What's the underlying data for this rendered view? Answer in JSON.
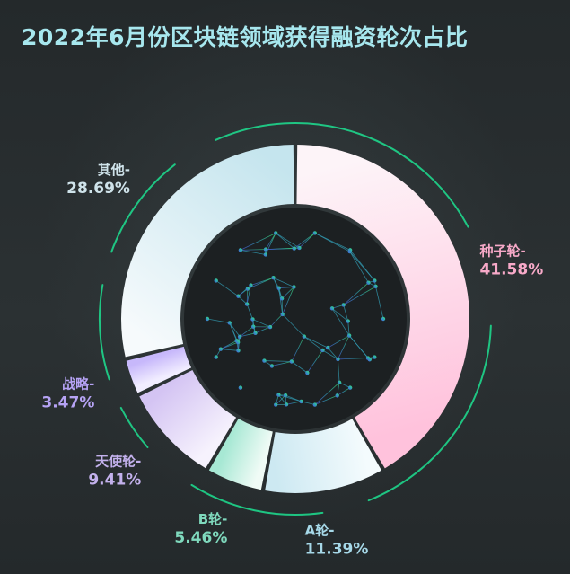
{
  "title": "2022年6月份区块链领域获得融资轮次占比",
  "chart_data": {
    "type": "pie",
    "variant": "donut",
    "title": "2022年6月份区块链领域获得融资轮次占比",
    "legend": "none",
    "order": "clockwise from top",
    "slices": [
      {
        "name": "种子轮",
        "label": "种子轮-",
        "value": 41.58,
        "value_label": "41.58%",
        "color_start": "#ffc2dc",
        "color_end": "#fdf4f8",
        "text_color": "#f7a9c8"
      },
      {
        "name": "A轮",
        "label": "A轮-",
        "value": 11.39,
        "value_label": "11.39%",
        "color_start": "#cde9f2",
        "color_end": "#f4fbfd",
        "text_color": "#a6d8e8"
      },
      {
        "name": "B轮",
        "label": "B轮-",
        "value": 5.46,
        "value_label": "5.46%",
        "color_start": "#a7e8d4",
        "color_end": "#f0fbf6",
        "text_color": "#7fd9bd"
      },
      {
        "name": "天使轮",
        "label": "天使轮-",
        "value": 9.41,
        "value_label": "9.41%",
        "color_start": "#d4c4f3",
        "color_end": "#f6f2fd",
        "text_color": "#c3b1ec"
      },
      {
        "name": "战略",
        "label": "战略-",
        "value": 3.47,
        "value_label": "3.47%",
        "color_start": "#c7b8fb",
        "color_end": "#f1edff",
        "text_color": "#b6a3f5"
      },
      {
        "name": "其他",
        "label": "其他-",
        "value": 28.69,
        "value_label": "28.69%",
        "color_start": "#c5e5ee",
        "color_end": "#f6fafc",
        "text_color": "#cfe3ea"
      }
    ]
  },
  "colors": {
    "background": "#262b2d",
    "title": "#a7e7ee",
    "ring": "#1ed68c",
    "inner_disc": "#1c2022"
  }
}
